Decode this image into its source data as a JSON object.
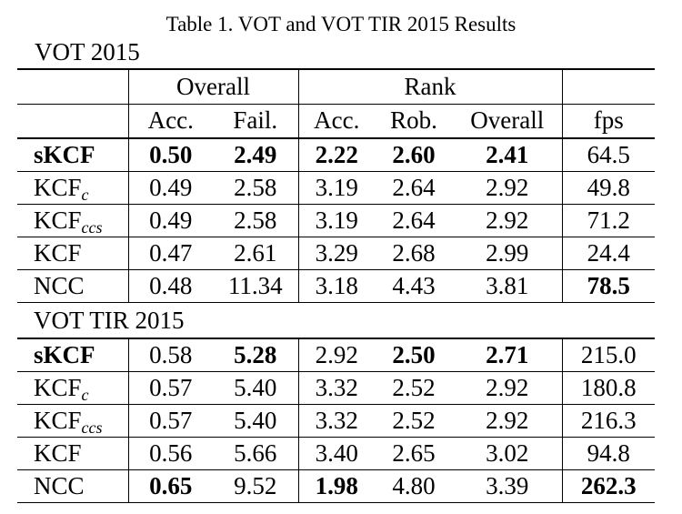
{
  "caption": "Table 1. VOT and VOT TIR 2015 Results",
  "sections": [
    {
      "title": "VOT 2015"
    },
    {
      "title": "VOT TIR 2015"
    }
  ],
  "header": {
    "group_overall": "Overall",
    "group_rank": "Rank",
    "columns": [
      "Acc.",
      "Fail.",
      "Acc.",
      "Rob.",
      "Overall",
      "fps"
    ]
  },
  "vot2015": [
    {
      "base": "sKCF",
      "sub": "",
      "cells": [
        "0.50",
        "2.49",
        "2.22",
        "2.60",
        "2.41",
        "64.5"
      ],
      "bold": [
        true,
        true,
        true,
        true,
        true,
        false
      ]
    },
    {
      "base": "KCF",
      "sub": "c",
      "cells": [
        "0.49",
        "2.58",
        "3.19",
        "2.64",
        "2.92",
        "49.8"
      ],
      "bold": [
        false,
        false,
        false,
        false,
        false,
        false
      ]
    },
    {
      "base": "KCF",
      "sub": "ccs",
      "cells": [
        "0.49",
        "2.58",
        "3.19",
        "2.64",
        "2.92",
        "71.2"
      ],
      "bold": [
        false,
        false,
        false,
        false,
        false,
        false
      ]
    },
    {
      "base": "KCF",
      "sub": "",
      "cells": [
        "0.47",
        "2.61",
        "3.29",
        "2.68",
        "2.99",
        "24.4"
      ],
      "bold": [
        false,
        false,
        false,
        false,
        false,
        false
      ]
    },
    {
      "base": "NCC",
      "sub": "",
      "cells": [
        "0.48",
        "11.34",
        "3.18",
        "4.43",
        "3.81",
        "78.5"
      ],
      "bold": [
        false,
        false,
        false,
        false,
        false,
        true
      ]
    }
  ],
  "vottir2015": [
    {
      "base": "sKCF",
      "sub": "",
      "cells": [
        "0.58",
        "5.28",
        "2.92",
        "2.50",
        "2.71",
        "215.0"
      ],
      "bold": [
        false,
        true,
        false,
        true,
        true,
        false
      ]
    },
    {
      "base": "KCF",
      "sub": "c",
      "cells": [
        "0.57",
        "5.40",
        "3.32",
        "2.52",
        "2.92",
        "180.8"
      ],
      "bold": [
        false,
        false,
        false,
        false,
        false,
        false
      ]
    },
    {
      "base": "KCF",
      "sub": "ccs",
      "cells": [
        "0.57",
        "5.40",
        "3.32",
        "2.52",
        "2.92",
        "216.3"
      ],
      "bold": [
        false,
        false,
        false,
        false,
        false,
        false
      ]
    },
    {
      "base": "KCF",
      "sub": "",
      "cells": [
        "0.56",
        "5.66",
        "3.40",
        "2.65",
        "3.02",
        "94.8"
      ],
      "bold": [
        false,
        false,
        false,
        false,
        false,
        false
      ]
    },
    {
      "base": "NCC",
      "sub": "",
      "cells": [
        "0.65",
        "9.52",
        "1.98",
        "4.80",
        "3.39",
        "262.3"
      ],
      "bold": [
        true,
        false,
        true,
        false,
        false,
        true
      ]
    }
  ]
}
